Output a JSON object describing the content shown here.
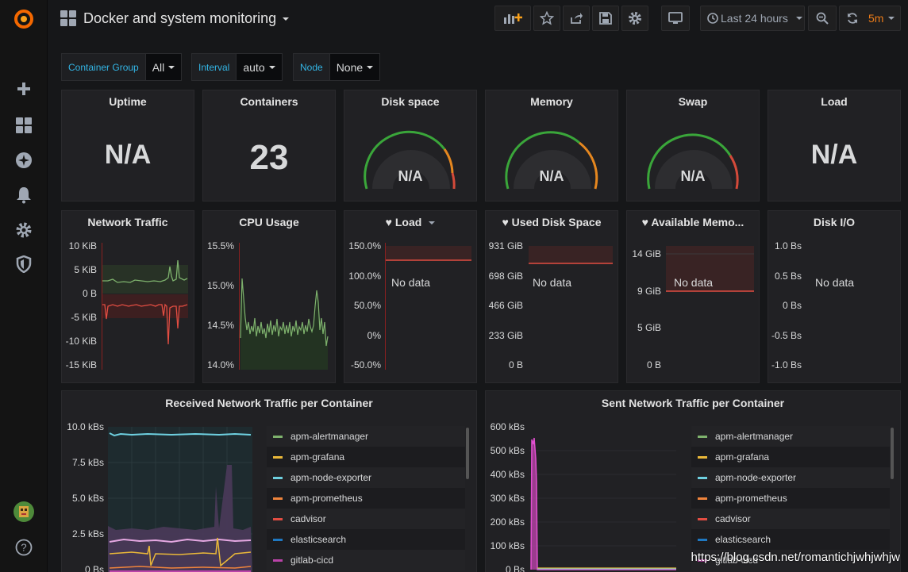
{
  "dashboard": {
    "title": "Docker and system monitoring",
    "time_range": "Last 24 hours",
    "refresh": "5m"
  },
  "variables": [
    {
      "label": "Container Group",
      "value": "All"
    },
    {
      "label": "Interval",
      "value": "auto"
    },
    {
      "label": "Node",
      "value": "None"
    }
  ],
  "stat_panels": [
    {
      "title": "Uptime",
      "value": "N/A"
    },
    {
      "title": "Containers",
      "value": "23"
    },
    {
      "title": "Disk space",
      "value": "N/A"
    },
    {
      "title": "Memory",
      "value": "N/A"
    },
    {
      "title": "Swap",
      "value": "N/A"
    },
    {
      "title": "Load",
      "value": "N/A"
    }
  ],
  "graph_panels": [
    {
      "title": "Network Traffic",
      "yaxis": [
        "10 KiB",
        "5 KiB",
        "0 B",
        "-5 KiB",
        "-10 KiB",
        "-15 KiB"
      ]
    },
    {
      "title": "CPU Usage",
      "yaxis": [
        "15.5%",
        "15.0%",
        "14.5%",
        "14.0%"
      ]
    },
    {
      "title": "Load",
      "yaxis": [
        "150.0%",
        "100.0%",
        "50.0%",
        "0%",
        "-50.0%"
      ],
      "nodata": "No data"
    },
    {
      "title": "Used Disk Space",
      "yaxis": [
        "931 GiB",
        "698 GiB",
        "466 GiB",
        "233 GiB",
        "0 B"
      ],
      "nodata": "No data"
    },
    {
      "title": "Available Memo...",
      "yaxis": [
        "14 GiB",
        "9 GiB",
        "5 GiB",
        "0 B"
      ],
      "nodata": "No data"
    },
    {
      "title": "Disk I/O",
      "yaxis": [
        "1.0 Bs",
        "0.5 Bs",
        "0 Bs",
        "-0.5 Bs",
        "-1.0 Bs"
      ],
      "nodata": "No data"
    }
  ],
  "received": {
    "title": "Received Network Traffic per Container",
    "yaxis": [
      "10.0 kBs",
      "7.5 kBs",
      "5.0 kBs",
      "2.5 kBs",
      "0 Bs"
    ],
    "legend": [
      {
        "name": "apm-alertmanager",
        "color": "#7eb26d"
      },
      {
        "name": "apm-grafana",
        "color": "#eab839"
      },
      {
        "name": "apm-node-exporter",
        "color": "#6ed0e0"
      },
      {
        "name": "apm-prometheus",
        "color": "#ef843c"
      },
      {
        "name": "cadvisor",
        "color": "#e24d42"
      },
      {
        "name": "elasticsearch",
        "color": "#1f78c1"
      },
      {
        "name": "gitlab-cicd",
        "color": "#ba43a9"
      }
    ]
  },
  "sent": {
    "title": "Sent Network Traffic per Container",
    "yaxis": [
      "600 kBs",
      "500 kBs",
      "400 kBs",
      "300 kBs",
      "200 kBs",
      "100 kBs",
      "0 Bs"
    ],
    "legend": [
      {
        "name": "apm-alertmanager",
        "color": "#7eb26d"
      },
      {
        "name": "apm-grafana",
        "color": "#eab839"
      },
      {
        "name": "apm-node-exporter",
        "color": "#6ed0e0"
      },
      {
        "name": "apm-prometheus",
        "color": "#ef843c"
      },
      {
        "name": "cadvisor",
        "color": "#e24d42"
      },
      {
        "name": "elasticsearch",
        "color": "#1f78c1"
      },
      {
        "name": "gitlab-cicd",
        "color": "#ba43a9"
      }
    ]
  },
  "watermark": "https://blog.csdn.net/romantichjwhjwhjw",
  "icons": [
    "grafana-logo-icon",
    "plus-icon",
    "dashboards-icon",
    "explore-icon",
    "alert-bell-icon",
    "gear-icon",
    "shield-icon",
    "help-icon"
  ]
}
